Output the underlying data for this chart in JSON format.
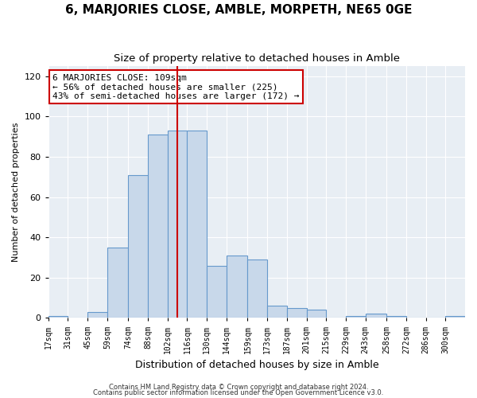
{
  "title": "6, MARJORIES CLOSE, AMBLE, MORPETH, NE65 0GE",
  "subtitle": "Size of property relative to detached houses in Amble",
  "xlabel": "Distribution of detached houses by size in Amble",
  "ylabel": "Number of detached properties",
  "bar_values": [
    1,
    0,
    3,
    35,
    71,
    91,
    93,
    93,
    26,
    31,
    29,
    6,
    5,
    4,
    0,
    1,
    2,
    1,
    0,
    0,
    1
  ],
  "bin_edges": [
    17,
    31,
    45,
    59,
    74,
    88,
    102,
    116,
    130,
    144,
    159,
    173,
    187,
    201,
    215,
    229,
    243,
    258,
    272,
    286,
    300,
    314
  ],
  "tick_labels": [
    "17sqm",
    "31sqm",
    "45sqm",
    "59sqm",
    "74sqm",
    "88sqm",
    "102sqm",
    "116sqm",
    "130sqm",
    "144sqm",
    "159sqm",
    "173sqm",
    "187sqm",
    "201sqm",
    "215sqm",
    "229sqm",
    "243sqm",
    "258sqm",
    "272sqm",
    "286sqm",
    "300sqm"
  ],
  "bar_color": "#c8d8ea",
  "bar_edge_color": "#6699cc",
  "property_size": 109,
  "vline_color": "#cc0000",
  "annotation_line1": "6 MARJORIES CLOSE: 109sqm",
  "annotation_line2": "← 56% of detached houses are smaller (225)",
  "annotation_line3": "43% of semi-detached houses are larger (172) →",
  "annotation_box_color": "#ffffff",
  "annotation_box_edge": "#cc0000",
  "ylim": [
    0,
    125
  ],
  "yticks": [
    0,
    20,
    40,
    60,
    80,
    100,
    120
  ],
  "footer1": "Contains HM Land Registry data © Crown copyright and database right 2024.",
  "footer2": "Contains public sector information licensed under the Open Government Licence v3.0.",
  "bg_color": "#ffffff",
  "plot_bg_color": "#e8eef4",
  "grid_color": "#ffffff",
  "title_fontsize": 11,
  "subtitle_fontsize": 9.5,
  "tick_fontsize": 7,
  "ylabel_fontsize": 8,
  "xlabel_fontsize": 9,
  "annotation_fontsize": 8,
  "footer_fontsize": 6
}
